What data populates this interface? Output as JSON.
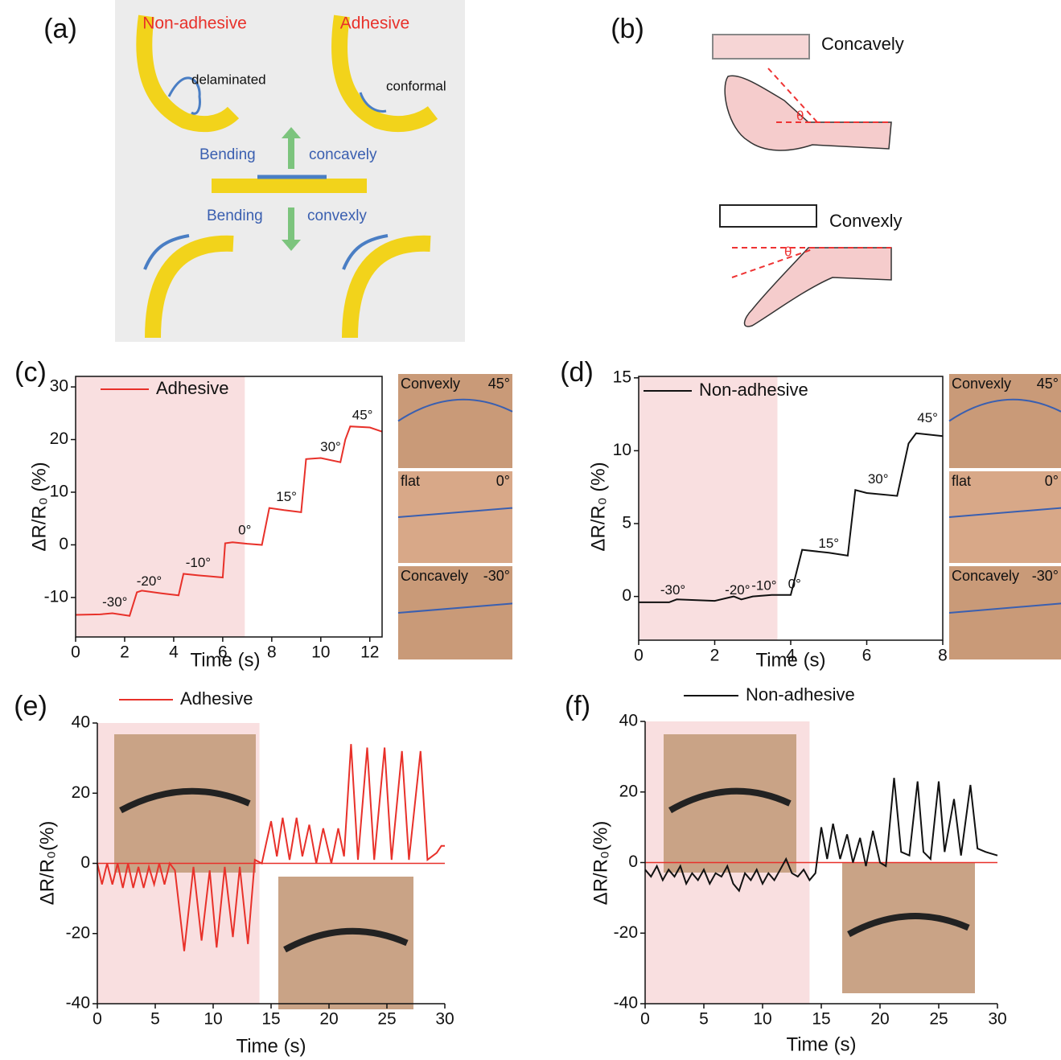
{
  "panel_a": {
    "label": "(a)",
    "left_title": "Non-adhesive",
    "right_title": "Adhesive",
    "left_note": "delaminated",
    "right_note": "conformal",
    "bend_up": "Bending",
    "bend_up_dir": "concavely",
    "bend_down": "Bending",
    "bend_down_dir": "convexly"
  },
  "panel_b": {
    "label": "(b)",
    "top_label": "Concavely",
    "top_angle": "θ",
    "bottom_label": "Convexly",
    "bottom_angle": "θ"
  },
  "chart_data": [
    {
      "type": "line",
      "panel_label": "(c)",
      "xlabel": "Time (s)",
      "ylabel": "ΔR/R₀ (%)",
      "xlim": [
        0,
        12.5
      ],
      "xticks": [
        0,
        2,
        4,
        6,
        8,
        10,
        12
      ],
      "ylim": [
        -17.5,
        32
      ],
      "yticks": [
        -10,
        0,
        10,
        20,
        30
      ],
      "highlight_x": [
        0,
        6.9
      ],
      "highlight_color": "#f9dfe0",
      "frame": true,
      "x": [
        0,
        1,
        1.5,
        2.2,
        2.5,
        2.7,
        3.5,
        4.2,
        4.4,
        5.0,
        6.0,
        6.1,
        6.4,
        7.0,
        7.6,
        7.9,
        8.5,
        9.2,
        9.4,
        10.0,
        10.8,
        11.0,
        11.2,
        12.0,
        12.5
      ],
      "series": [
        {
          "name": "Adhesive",
          "color": "#e8312a",
          "values": [
            -13.3,
            -13.2,
            -13,
            -13.5,
            -9,
            -8.7,
            -9.2,
            -9.6,
            -5.5,
            -5.8,
            -6.2,
            0.3,
            0.5,
            0.2,
            0,
            7,
            6.6,
            6.2,
            16.3,
            16.5,
            15.7,
            20,
            22.5,
            22.3,
            21.5
          ]
        }
      ],
      "annotations": [
        "-30°",
        "-20°",
        "-10°",
        "0°",
        "15°",
        "30°",
        "45°"
      ],
      "insets": [
        {
          "label": "Convexly",
          "angle": "45°"
        },
        {
          "label": "flat",
          "angle": "0°"
        },
        {
          "label": "Concavely",
          "angle": "-30°"
        }
      ]
    },
    {
      "type": "line",
      "panel_label": "(d)",
      "xlabel": "Time (s)",
      "ylabel": "ΔR/R₀ (%)",
      "xlim": [
        0,
        8
      ],
      "xticks": [
        0,
        2,
        4,
        6,
        8
      ],
      "ylim": [
        -3,
        15.1
      ],
      "yticks": [
        0,
        5,
        10,
        15
      ],
      "highlight_x": [
        0,
        3.65
      ],
      "highlight_color": "#f9dfe0",
      "frame": true,
      "x": [
        0,
        0.8,
        1,
        2,
        2.5,
        2.7,
        3,
        3.5,
        4,
        4.3,
        5,
        5.5,
        5.7,
        6,
        6.8,
        7.1,
        7.3,
        8
      ],
      "series": [
        {
          "name": "Non-adhesive",
          "color": "#111111",
          "values": [
            -0.4,
            -0.4,
            -0.2,
            -0.3,
            0,
            -0.2,
            0,
            0.1,
            0.1,
            3.2,
            3,
            2.8,
            7.3,
            7.1,
            6.9,
            10.5,
            11.2,
            11.0
          ]
        }
      ],
      "annotations": [
        "-30°",
        "-20°",
        "-10°",
        "0°",
        "15°",
        "30°",
        "45°"
      ],
      "insets": [
        {
          "label": "Convexly",
          "angle": "45°"
        },
        {
          "label": "flat",
          "angle": "0°"
        },
        {
          "label": "Concavely",
          "angle": "-30°"
        }
      ]
    },
    {
      "type": "line",
      "panel_label": "(e)",
      "xlabel": "Time (s)",
      "ylabel": "ΔR/R₀(%)",
      "xlim": [
        0,
        30
      ],
      "xticks": [
        0,
        5,
        10,
        15,
        20,
        25,
        30
      ],
      "ylim": [
        -40,
        40
      ],
      "yticks": [
        -40,
        -20,
        0,
        20,
        40
      ],
      "highlight_x": [
        0,
        14
      ],
      "highlight_color": "#f9dfe0",
      "frame": false,
      "hlines": [
        {
          "y": 0,
          "color": "#e8312a"
        }
      ],
      "x": [
        0,
        0.4,
        0.85,
        1.3,
        1.75,
        2.2,
        2.65,
        3.1,
        3.55,
        4.0,
        4.45,
        4.9,
        5.35,
        5.8,
        6.25,
        6.7,
        7.5,
        8.3,
        9.0,
        9.7,
        10.3,
        11.0,
        11.7,
        12.3,
        13.0,
        13.6,
        14.2,
        14.6,
        15.0,
        15.5,
        16.0,
        16.6,
        17.2,
        17.7,
        18.3,
        18.9,
        19.5,
        20.2,
        20.8,
        21.3,
        21.9,
        22.5,
        23.3,
        23.9,
        24.8,
        25.4,
        26.3,
        26.9,
        27.9,
        28.5,
        29.3,
        29.7,
        30
      ],
      "series": [
        {
          "name": "Adhesive",
          "color": "#e8312a",
          "values": [
            0,
            -6,
            0,
            -6,
            0,
            -7,
            0,
            -7,
            -1,
            -7,
            -1,
            -6,
            0,
            -6,
            0,
            -2,
            -25,
            -1,
            -22,
            -2,
            -24,
            -1,
            -21,
            -1,
            -23,
            1,
            0,
            6,
            12,
            2,
            13,
            1,
            13,
            2,
            11,
            0,
            10,
            0,
            10,
            2,
            34,
            1,
            33,
            1,
            33,
            1,
            32,
            1,
            32,
            1,
            3,
            5,
            5
          ]
        }
      ],
      "annotations": [],
      "insets": []
    },
    {
      "type": "line",
      "panel_label": "(f)",
      "xlabel": "Time (s)",
      "ylabel": "ΔR/R₀(%)",
      "xlim": [
        0,
        30
      ],
      "xticks": [
        0,
        5,
        10,
        15,
        20,
        25,
        30
      ],
      "ylim": [
        -40,
        40
      ],
      "yticks": [
        -40,
        -20,
        0,
        20,
        40
      ],
      "highlight_x": [
        0,
        14
      ],
      "highlight_color": "#f9dfe0",
      "frame": false,
      "hlines": [
        {
          "y": 0,
          "color": "#e8312a"
        }
      ],
      "x": [
        0,
        0.5,
        1,
        1.5,
        2,
        2.5,
        3,
        3.5,
        4,
        4.5,
        5,
        5.5,
        6,
        6.5,
        7,
        7.5,
        8,
        8.5,
        9,
        9.5,
        10,
        10.5,
        11,
        11.5,
        12,
        12.5,
        13,
        13.5,
        14,
        14.5,
        15,
        15.5,
        16,
        16.6,
        17.2,
        17.7,
        18.3,
        18.8,
        19.4,
        20,
        20.5,
        21.2,
        21.8,
        22.5,
        23.2,
        23.7,
        24.3,
        25,
        25.5,
        26.3,
        26.9,
        27.7,
        28.3,
        29,
        30
      ],
      "series": [
        {
          "name": "Non-adhesive",
          "color": "#111111",
          "values": [
            -2,
            -4,
            -1,
            -5,
            -2,
            -4,
            -1,
            -6,
            -3,
            -5,
            -2,
            -6,
            -3,
            -4,
            -1,
            -6,
            -8,
            -3,
            -5,
            -2,
            -6,
            -3,
            -5,
            -2,
            1,
            -3,
            -4,
            -2,
            -5,
            -3,
            10,
            1,
            11,
            1,
            8,
            0,
            7,
            -1,
            9,
            0,
            -1,
            24,
            3,
            2,
            23,
            3,
            1,
            23,
            3,
            18,
            2,
            22,
            4,
            3,
            2
          ]
        }
      ],
      "annotations": [],
      "insets": []
    }
  ]
}
